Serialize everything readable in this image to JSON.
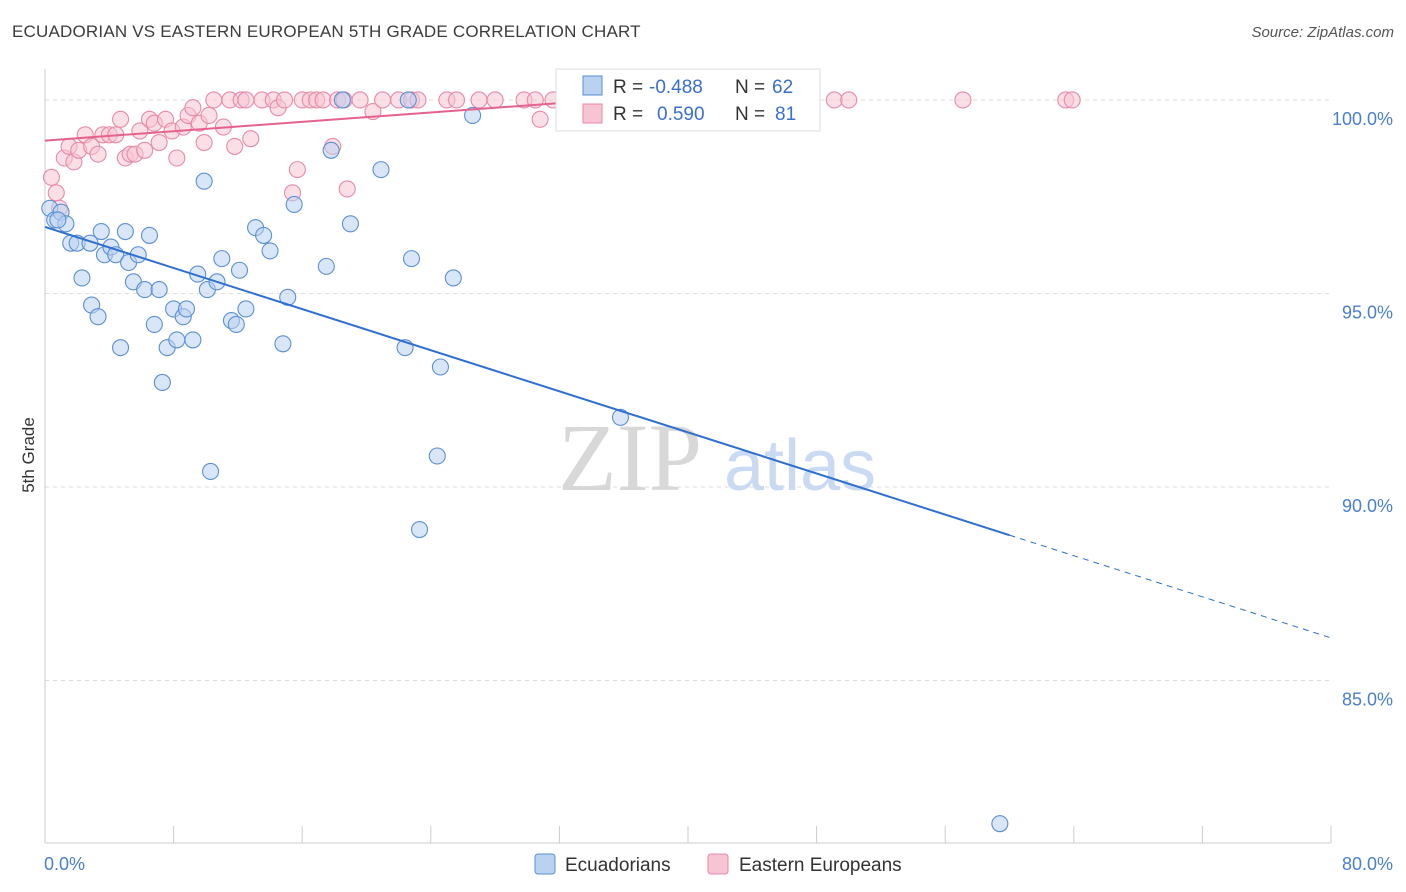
{
  "title": "ECUADORIAN VS EASTERN EUROPEAN 5TH GRADE CORRELATION CHART",
  "source": "Source: ZipAtlas.com",
  "watermark": {
    "zip": "ZIP",
    "atlas": "atlas"
  },
  "colors": {
    "blue": "#5b8fd6",
    "blue_fill": "#b9d2f0",
    "blue_line": "#2e6fd0",
    "pink": "#e88aa8",
    "pink_fill": "#f7c4d4",
    "pink_line": "#e4628d",
    "tick_label": "#4a7fcf",
    "grid": "#dddddd"
  },
  "legend_box": {
    "r_label": "R =",
    "n_label": "N =",
    "rows": [
      {
        "series": "Ecuadorians",
        "r": "-0.488",
        "n": "62"
      },
      {
        "series": "Eastern Europeans",
        "r": "0.590",
        "n": "81"
      }
    ]
  },
  "chart_data": {
    "type": "scatter",
    "title": "ECUADORIAN VS EASTERN EUROPEAN 5TH GRADE CORRELATION CHART",
    "xlabel": "",
    "ylabel": "5th Grade",
    "xlim": [
      0,
      80
    ],
    "ylim": [
      80.8,
      100.8
    ],
    "x_tick_labels": [
      "0.0%",
      "80.0%"
    ],
    "y_ticks": [
      100,
      95,
      90,
      85
    ],
    "y_tick_labels": [
      "100.0%",
      "95.0%",
      "90.0%",
      "85.0%"
    ],
    "grid": true,
    "legend_position": "bottom",
    "series": [
      {
        "name": "Ecuadorians",
        "color": "#5b8fd6",
        "trend": {
          "x0": 0,
          "y0": 96.72,
          "x1": 80,
          "y1": 86.1,
          "solid_until": 60.0
        },
        "points": [
          [
            0.3,
            97.2
          ],
          [
            0.6,
            96.9
          ],
          [
            1.0,
            97.1
          ],
          [
            1.3,
            96.8
          ],
          [
            1.6,
            96.3
          ],
          [
            2.0,
            96.3
          ],
          [
            2.3,
            95.4
          ],
          [
            2.8,
            96.3
          ],
          [
            2.9,
            94.7
          ],
          [
            3.3,
            94.4
          ],
          [
            3.5,
            96.6
          ],
          [
            3.7,
            96.0
          ],
          [
            4.1,
            96.2
          ],
          [
            4.4,
            96.0
          ],
          [
            4.7,
            93.6
          ],
          [
            5.0,
            96.6
          ],
          [
            5.2,
            95.8
          ],
          [
            5.5,
            95.3
          ],
          [
            5.8,
            96.0
          ],
          [
            6.2,
            95.1
          ],
          [
            6.5,
            96.5
          ],
          [
            6.8,
            94.2
          ],
          [
            7.1,
            95.1
          ],
          [
            7.3,
            92.7
          ],
          [
            7.6,
            93.6
          ],
          [
            8.0,
            94.6
          ],
          [
            8.2,
            93.8
          ],
          [
            8.6,
            94.4
          ],
          [
            8.8,
            94.6
          ],
          [
            9.2,
            93.8
          ],
          [
            9.5,
            95.5
          ],
          [
            9.9,
            97.9
          ],
          [
            10.1,
            95.1
          ],
          [
            10.3,
            90.4
          ],
          [
            10.7,
            95.3
          ],
          [
            11.0,
            95.9
          ],
          [
            11.6,
            94.3
          ],
          [
            11.9,
            94.2
          ],
          [
            12.1,
            95.6
          ],
          [
            12.5,
            94.6
          ],
          [
            13.1,
            96.7
          ],
          [
            13.6,
            96.5
          ],
          [
            14.0,
            96.1
          ],
          [
            14.8,
            93.7
          ],
          [
            15.1,
            94.9
          ],
          [
            15.5,
            97.3
          ],
          [
            17.5,
            95.7
          ],
          [
            17.8,
            98.7
          ],
          [
            18.5,
            100.0
          ],
          [
            19.0,
            96.8
          ],
          [
            20.9,
            98.2
          ],
          [
            22.4,
            93.6
          ],
          [
            22.6,
            100.0
          ],
          [
            22.8,
            95.9
          ],
          [
            23.3,
            88.9
          ],
          [
            24.4,
            90.8
          ],
          [
            24.6,
            93.1
          ],
          [
            25.4,
            95.4
          ],
          [
            26.6,
            99.6
          ],
          [
            35.8,
            91.8
          ],
          [
            59.4,
            81.3
          ],
          [
            0.8,
            96.9
          ]
        ]
      },
      {
        "name": "Eastern Europeans",
        "color": "#e88aa8",
        "trend": {
          "x0": 0,
          "y0": 98.95,
          "x1": 38,
          "y1": 100.1
        },
        "points": [
          [
            0.4,
            98.0
          ],
          [
            0.7,
            97.6
          ],
          [
            0.9,
            97.2
          ],
          [
            1.2,
            98.5
          ],
          [
            1.5,
            98.8
          ],
          [
            1.8,
            98.4
          ],
          [
            2.1,
            98.7
          ],
          [
            2.5,
            99.1
          ],
          [
            2.9,
            98.8
          ],
          [
            3.3,
            98.6
          ],
          [
            3.6,
            99.1
          ],
          [
            4.0,
            99.1
          ],
          [
            4.4,
            99.1
          ],
          [
            4.7,
            99.5
          ],
          [
            5.0,
            98.5
          ],
          [
            5.3,
            98.6
          ],
          [
            5.6,
            98.6
          ],
          [
            5.9,
            99.2
          ],
          [
            6.2,
            98.7
          ],
          [
            6.5,
            99.5
          ],
          [
            6.8,
            99.4
          ],
          [
            7.1,
            98.9
          ],
          [
            7.5,
            99.5
          ],
          [
            7.9,
            99.2
          ],
          [
            8.2,
            98.5
          ],
          [
            8.6,
            99.3
          ],
          [
            8.9,
            99.6
          ],
          [
            9.2,
            99.8
          ],
          [
            9.6,
            99.4
          ],
          [
            9.9,
            98.9
          ],
          [
            10.2,
            99.6
          ],
          [
            10.5,
            100.0
          ],
          [
            11.1,
            99.3
          ],
          [
            11.5,
            100.0
          ],
          [
            11.8,
            98.8
          ],
          [
            12.2,
            100.0
          ],
          [
            12.5,
            100.0
          ],
          [
            12.8,
            99.0
          ],
          [
            13.5,
            100.0
          ],
          [
            14.2,
            100.0
          ],
          [
            14.5,
            99.8
          ],
          [
            14.9,
            100.0
          ],
          [
            15.4,
            97.6
          ],
          [
            15.7,
            98.2
          ],
          [
            16.0,
            100.0
          ],
          [
            16.5,
            100.0
          ],
          [
            16.9,
            100.0
          ],
          [
            17.3,
            100.0
          ],
          [
            17.9,
            98.8
          ],
          [
            18.2,
            100.0
          ],
          [
            18.6,
            100.0
          ],
          [
            18.8,
            97.7
          ],
          [
            19.6,
            100.0
          ],
          [
            20.4,
            99.7
          ],
          [
            21.0,
            100.0
          ],
          [
            22.0,
            100.0
          ],
          [
            22.8,
            100.0
          ],
          [
            23.2,
            100.0
          ],
          [
            25.0,
            100.0
          ],
          [
            25.6,
            100.0
          ],
          [
            27.0,
            100.0
          ],
          [
            28.0,
            100.0
          ],
          [
            29.8,
            100.0
          ],
          [
            30.5,
            100.0
          ],
          [
            30.8,
            99.5
          ],
          [
            31.6,
            100.0
          ],
          [
            32.6,
            100.0
          ],
          [
            33.6,
            100.0
          ],
          [
            34.2,
            100.0
          ],
          [
            36.0,
            100.0
          ],
          [
            37.8,
            100.0
          ],
          [
            38.6,
            100.0
          ],
          [
            40.0,
            100.0
          ],
          [
            42.3,
            100.0
          ],
          [
            44.6,
            100.0
          ],
          [
            47.1,
            100.0
          ],
          [
            49.1,
            100.0
          ],
          [
            50.0,
            100.0
          ],
          [
            57.1,
            100.0
          ],
          [
            63.5,
            100.0
          ],
          [
            63.9,
            100.0
          ]
        ]
      }
    ]
  }
}
